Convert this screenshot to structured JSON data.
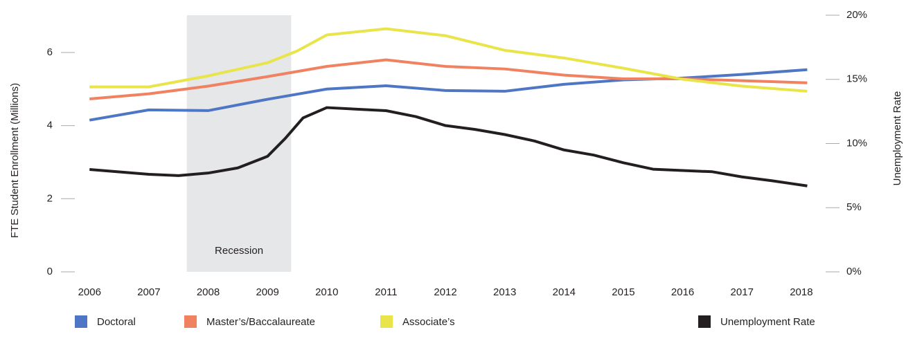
{
  "chart_data": {
    "type": "line",
    "y_label": "FTE Student Enrollment (Millions)",
    "y2_label": "Unemployment Rate",
    "shaded": {
      "label": "Recession",
      "start": 2007.64,
      "end": 2009.4,
      "color": "#e6e7e8"
    },
    "xlim": [
      2005.6,
      2018.27
    ],
    "xticks": [
      2006,
      2007,
      2008,
      2009,
      2010,
      2011,
      2012,
      2013,
      2014,
      2015,
      2016,
      2017,
      2018
    ],
    "ylim": [
      0,
      7.02
    ],
    "yticks": [
      0,
      2,
      4,
      6
    ],
    "y2lim": [
      0,
      20
    ],
    "y2ticks": [
      {
        "value": 0,
        "label": "0%"
      },
      {
        "value": 5,
        "label": "5%"
      },
      {
        "value": 10,
        "label": "10%"
      },
      {
        "value": 15,
        "label": "15%"
      },
      {
        "value": 20,
        "label": "20%"
      }
    ],
    "grid": false,
    "series": [
      {
        "name": "Doctoral",
        "color": "#4f76c4",
        "x": [
          2006,
          2007,
          2008,
          2009,
          2010,
          2011,
          2012,
          2013,
          2014,
          2015,
          2016,
          2017,
          2018.1
        ],
        "values": [
          4.15,
          4.43,
          4.41,
          4.72,
          5.0,
          5.09,
          4.96,
          4.94,
          5.13,
          5.25,
          5.3,
          5.4,
          5.53
        ]
      },
      {
        "name": "Master’s/Baccalaureate",
        "color": "#f08262",
        "x": [
          2006,
          2007,
          2008,
          2009,
          2010,
          2011,
          2012,
          2013,
          2014,
          2015,
          2016,
          2017,
          2018.1
        ],
        "values": [
          4.73,
          4.87,
          5.08,
          5.34,
          5.62,
          5.8,
          5.62,
          5.55,
          5.38,
          5.28,
          5.28,
          5.23,
          5.17
        ]
      },
      {
        "name": "Associate’s",
        "color": "#e8e44a",
        "x": [
          2006,
          2007,
          2008,
          2009,
          2009.5,
          2010,
          2011,
          2012,
          2013,
          2014,
          2015,
          2016,
          2017,
          2018.1
        ],
        "values": [
          5.06,
          5.06,
          5.36,
          5.72,
          6.04,
          6.48,
          6.65,
          6.46,
          6.06,
          5.85,
          5.57,
          5.27,
          5.08,
          4.94
        ]
      },
      {
        "name": "Unemployment Rate",
        "color": "#231f20",
        "axis": "y2",
        "x": [
          2006,
          2007,
          2007.5,
          2008,
          2008.5,
          2009,
          2009.3,
          2009.6,
          2010,
          2011,
          2011.5,
          2012,
          2012.5,
          2013,
          2013.5,
          2014,
          2014.5,
          2015,
          2015.5,
          2016,
          2016.5,
          2017,
          2017.5,
          2018.1
        ],
        "values": [
          7.98,
          7.6,
          7.5,
          7.7,
          8.1,
          9.0,
          10.4,
          12.0,
          12.8,
          12.56,
          12.1,
          11.4,
          11.1,
          10.7,
          10.2,
          9.5,
          9.1,
          8.5,
          8.0,
          7.9,
          7.8,
          7.4,
          7.1,
          6.7
        ]
      }
    ]
  }
}
